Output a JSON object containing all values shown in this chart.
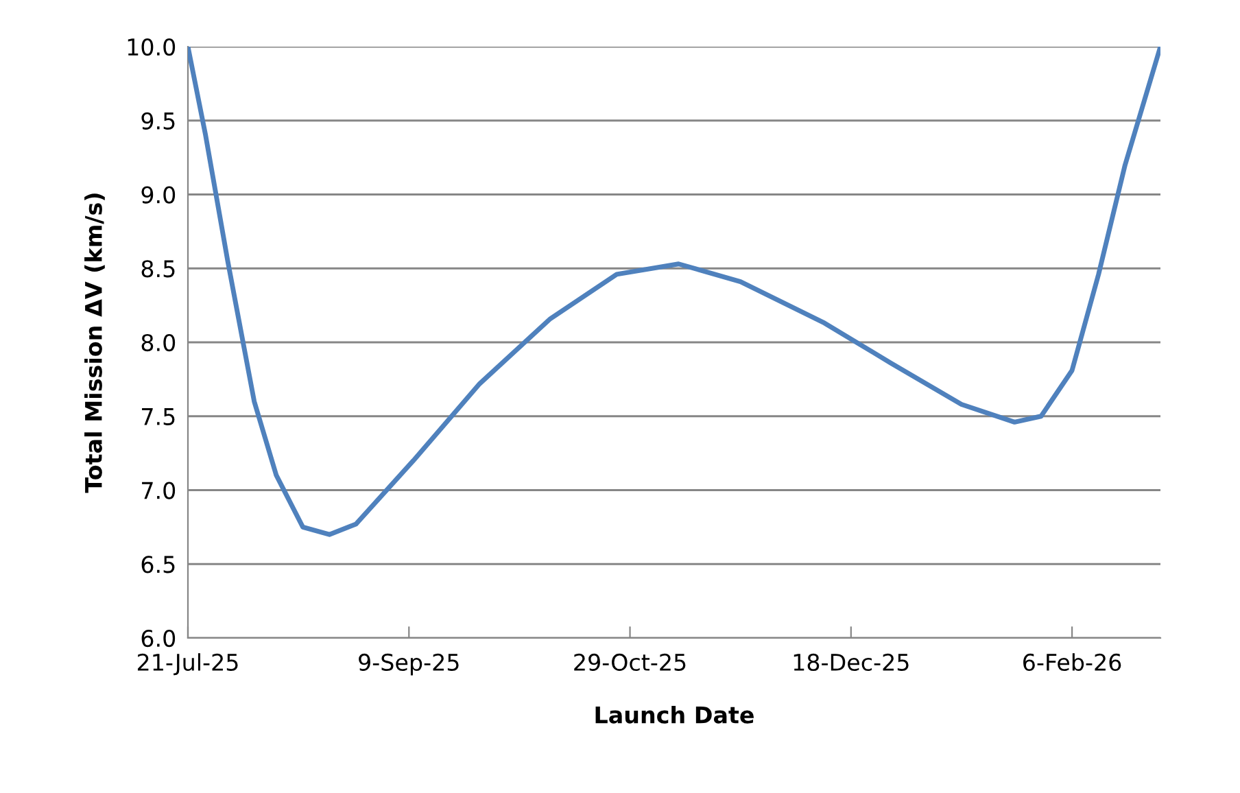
{
  "chart_data": {
    "type": "line",
    "xlabel": "Launch Date",
    "ylabel": "Total Mission ΔV (km/s)",
    "x": [
      "2025-07-21",
      "2025-07-25",
      "2025-07-30",
      "2025-08-05",
      "2025-08-10",
      "2025-08-16",
      "2025-08-22",
      "2025-08-28",
      "2025-09-10",
      "2025-09-25",
      "2025-10-11",
      "2025-10-26",
      "2025-11-09",
      "2025-11-23",
      "2025-12-12",
      "2025-12-27",
      "2026-01-12",
      "2026-01-24",
      "2026-01-30",
      "2026-02-06",
      "2026-02-12",
      "2026-02-18",
      "2026-02-26"
    ],
    "series": [
      {
        "color": "#4f81bd",
        "values": [
          10.0,
          9.4,
          8.55,
          7.6,
          7.1,
          6.75,
          6.7,
          6.77,
          7.2,
          7.72,
          8.16,
          8.46,
          8.53,
          8.41,
          8.13,
          7.86,
          7.58,
          7.46,
          7.5,
          7.81,
          8.46,
          9.2,
          10.0
        ]
      }
    ],
    "xlim": [
      "2025-07-21",
      "2026-02-26"
    ],
    "xticks": [
      {
        "value": "2025-07-21",
        "label": "21-Jul-25"
      },
      {
        "value": "2025-09-09",
        "label": "9-Sep-25"
      },
      {
        "value": "2025-10-29",
        "label": "29-Oct-25"
      },
      {
        "value": "2025-12-18",
        "label": "18-Dec-25"
      },
      {
        "value": "2026-02-06",
        "label": "6-Feb-26"
      }
    ],
    "ylim": [
      6.0,
      10.0
    ],
    "yticks": [
      {
        "value": 6.0,
        "label": "6.0"
      },
      {
        "value": 6.5,
        "label": "6.5"
      },
      {
        "value": 7.0,
        "label": "7.0"
      },
      {
        "value": 7.5,
        "label": "7.5"
      },
      {
        "value": 8.0,
        "label": "8.0"
      },
      {
        "value": 8.5,
        "label": "8.5"
      },
      {
        "value": 9.0,
        "label": "9.0"
      },
      {
        "value": 9.5,
        "label": "9.5"
      },
      {
        "value": 10.0,
        "label": "10.0"
      }
    ],
    "grid": "y",
    "marker": "none",
    "line_style": "solid",
    "legend": false
  }
}
